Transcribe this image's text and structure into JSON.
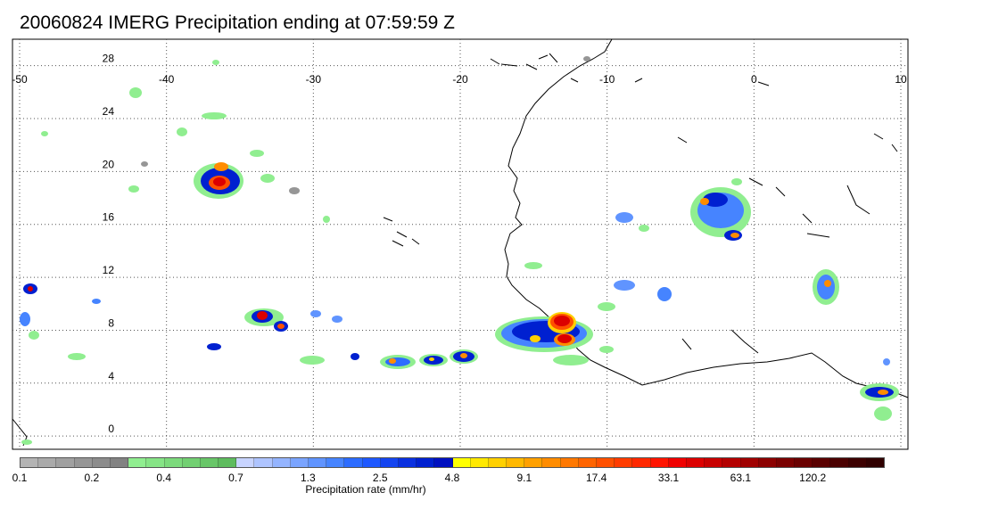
{
  "title": "20060824 IMERG Precipitation ending at 07:59:59 Z",
  "map": {
    "lon_ticks": [
      "-50",
      "-40",
      "-30",
      "-20",
      "-10",
      "0",
      "10"
    ],
    "lat_ticks": [
      "28",
      "24",
      "20",
      "16",
      "12",
      "8",
      "4",
      "0"
    ],
    "lon_range": [
      -50,
      10
    ],
    "lat_range": [
      -1,
      30
    ],
    "grid": true
  },
  "colorbar": {
    "title": "Precipitation rate (mm/hr)",
    "labels": [
      "0.1",
      "0.2",
      "0.4",
      "0.7",
      "1.3",
      "2.5",
      "4.8",
      "9.1",
      "17.4",
      "33.1",
      "63.1",
      "120.2"
    ],
    "colors": [
      "#b4b4b4",
      "#aaaaaa",
      "#a0a0a0",
      "#969696",
      "#8c8c8c",
      "#828282",
      "#90ee90",
      "#86e486",
      "#7cda7c",
      "#72d072",
      "#68c668",
      "#5ebc5e",
      "#c8d4ff",
      "#aec4ff",
      "#94b4ff",
      "#7aa4ff",
      "#6094ff",
      "#4684ff",
      "#2c6cff",
      "#1e58ff",
      "#1444f0",
      "#0a30e0",
      "#0020d0",
      "#0010c0",
      "#ffff00",
      "#ffe800",
      "#ffd000",
      "#ffb800",
      "#ffa000",
      "#ff8c00",
      "#ff7800",
      "#ff6400",
      "#ff5000",
      "#ff3c00",
      "#ff2800",
      "#ff1400",
      "#f00000",
      "#dc0000",
      "#c80000",
      "#b40000",
      "#a00000",
      "#8c0000",
      "#7a0000",
      "#6a0000",
      "#5a0000",
      "#4a0000",
      "#3c0000",
      "#300000"
    ]
  }
}
